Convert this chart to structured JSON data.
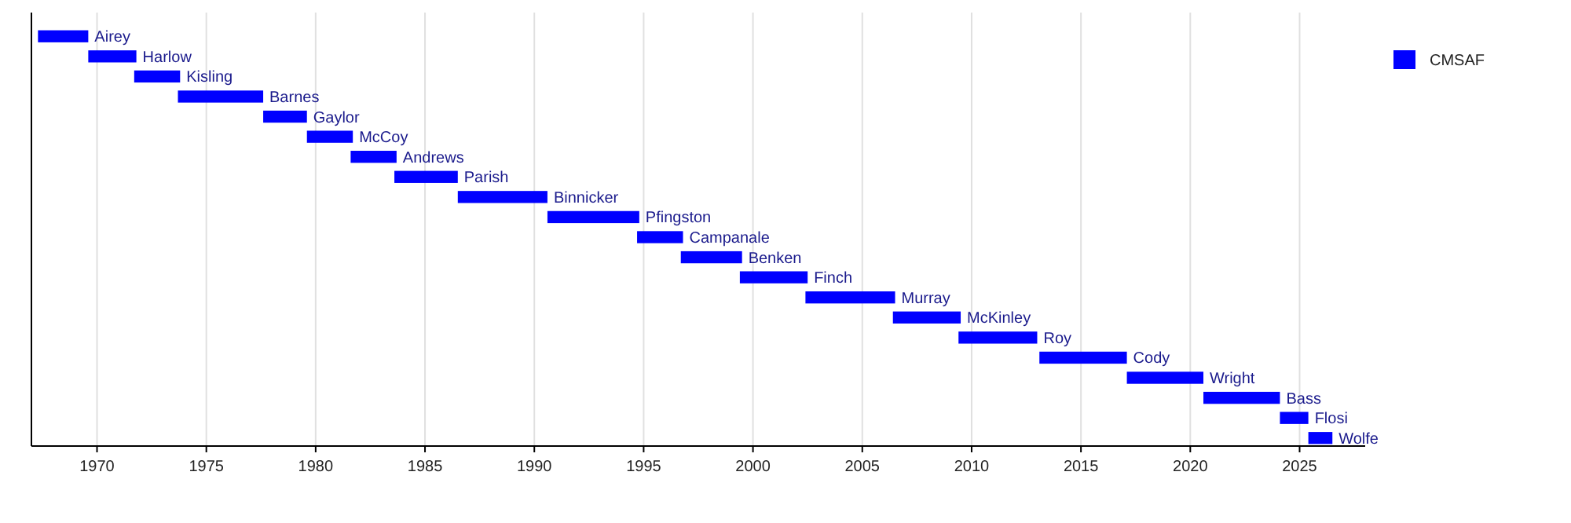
{
  "chart_data": {
    "type": "bar",
    "orientation": "horizontal",
    "categories": [
      null,
      null,
      null,
      null,
      null,
      null,
      null,
      null,
      null,
      null,
      null,
      null,
      null,
      null,
      null,
      null,
      null,
      null,
      null,
      null,
      null
    ],
    "series": [
      {
        "name": "CMSAF",
        "color": "#0000ff",
        "base": [
          1967.3,
          1969.6,
          1971.7,
          1973.7,
          1977.6,
          1979.6,
          1981.6,
          1983.6,
          1986.5,
          1990.6,
          1994.7,
          1996.7,
          1999.4,
          2002.4,
          2006.4,
          2009.4,
          2013.1,
          2017.1,
          2020.6,
          2024.1,
          2025.4
        ],
        "values": [
          2.3,
          2.2,
          2.1,
          3.9,
          2.0,
          2.1,
          2.1,
          2.9,
          4.1,
          4.2,
          2.1,
          2.8,
          3.1,
          4.1,
          3.1,
          3.6,
          4.0,
          3.5,
          3.5,
          1.3,
          1.1
        ],
        "value_labels": [
          "Airey",
          "Harlow",
          "Kisling",
          "Barnes",
          "Gaylor",
          "McCoy",
          "Andrews",
          "Parish",
          "Binnicker",
          "Pfingston",
          "Campanale",
          "Benken",
          "Finch",
          "Murray",
          "McKinley",
          "Roy",
          "Cody",
          "Wright",
          "Bass",
          "Flosi",
          "Wolfe"
        ]
      }
    ],
    "xlim": [
      1967,
      2028
    ],
    "xticks": [
      1970,
      1975,
      1980,
      1985,
      1990,
      1995,
      2000,
      2005,
      2010,
      2015,
      2020,
      2025
    ],
    "grid": "x",
    "legend": "top right",
    "tick_labels": "x"
  }
}
